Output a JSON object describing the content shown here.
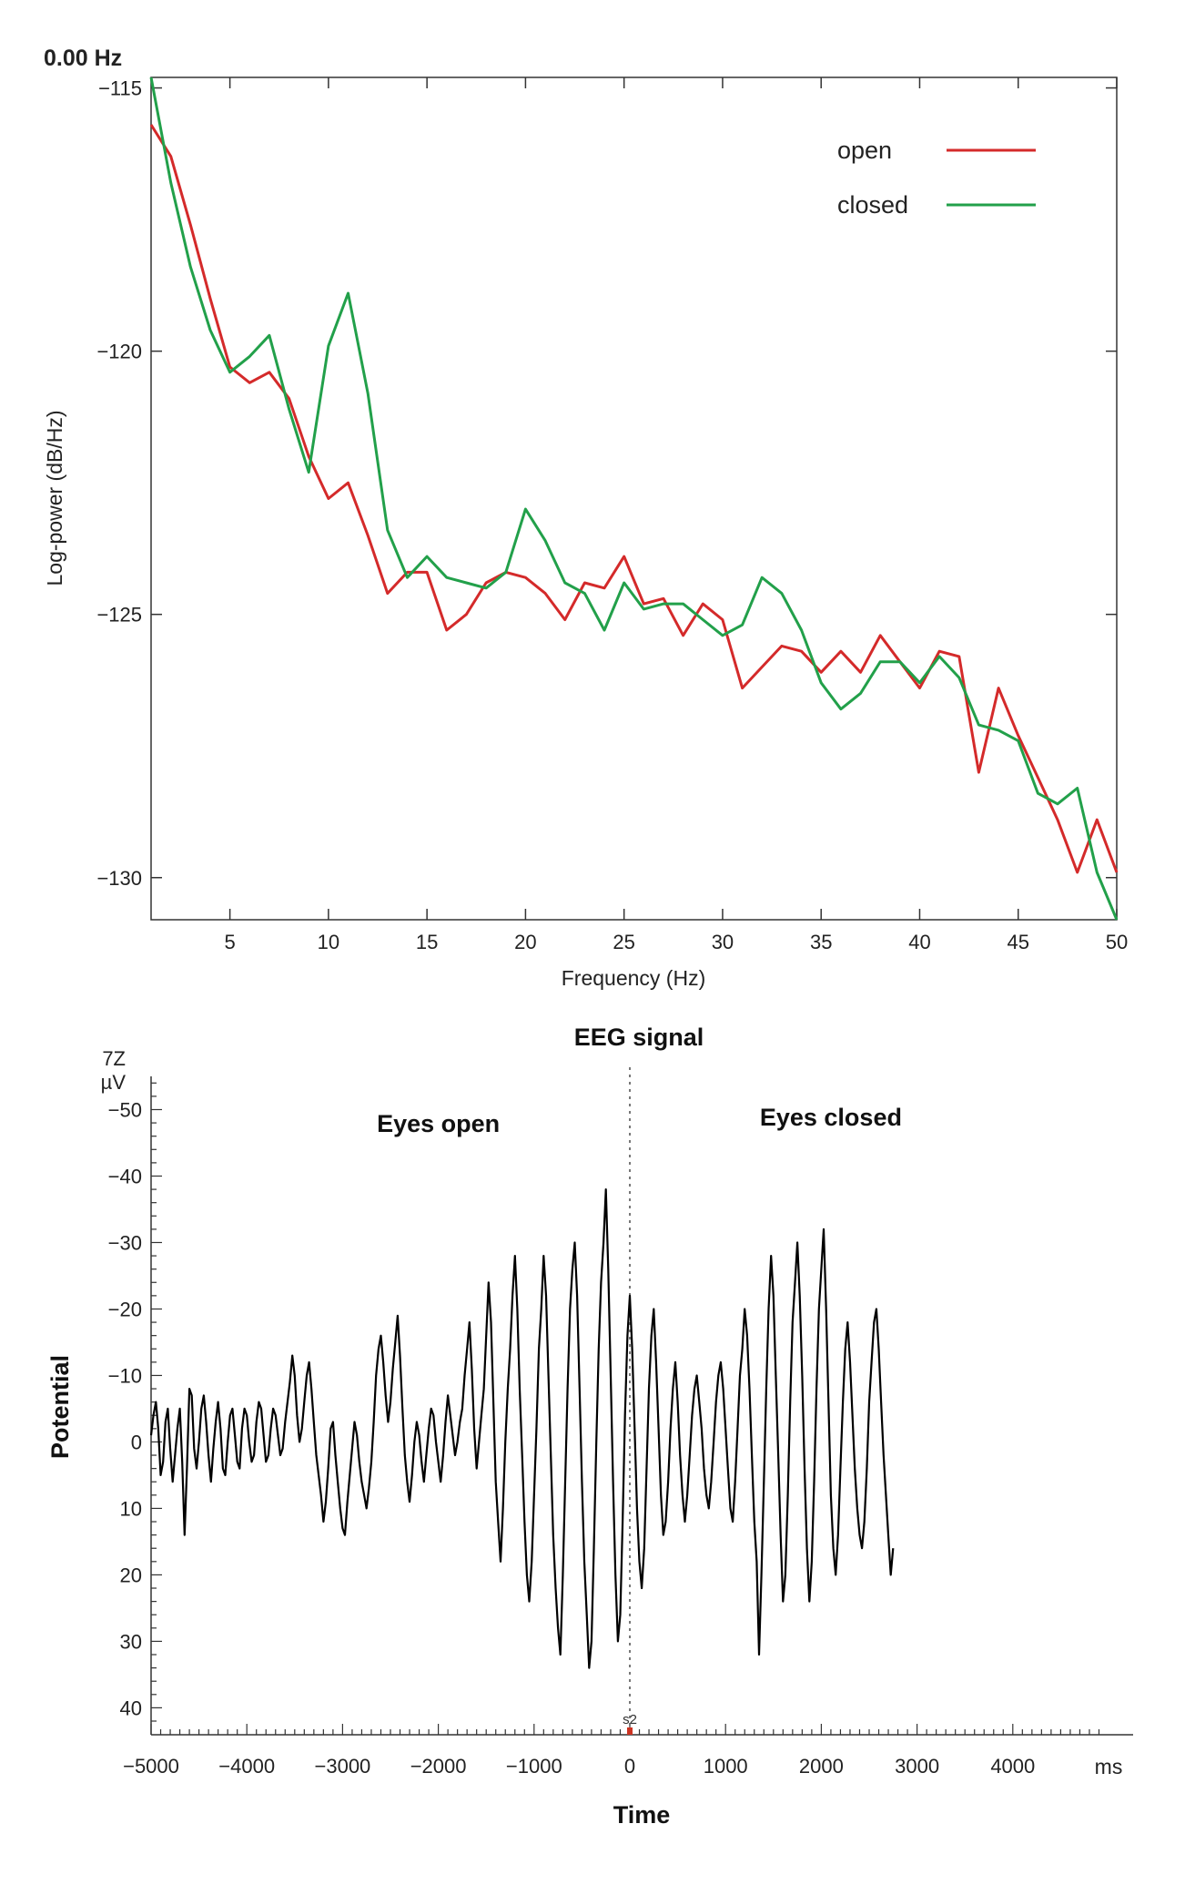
{
  "chart_data": [
    {
      "type": "line",
      "corner_label": "0.00 Hz",
      "title": "",
      "xlabel": "Frequency (Hz)",
      "ylabel": "Log-power (dB/Hz)",
      "xlim": [
        1,
        50
      ],
      "ylim": [
        -130.8,
        -114.8
      ],
      "xticks": [
        5,
        10,
        15,
        20,
        25,
        30,
        35,
        40,
        45,
        50
      ],
      "yticks": [
        -115,
        -120,
        -125,
        -130
      ],
      "legend_position": "top-right",
      "x": [
        1,
        2,
        3,
        4,
        5,
        6,
        7,
        8,
        9,
        10,
        11,
        12,
        13,
        14,
        15,
        16,
        17,
        18,
        19,
        20,
        21,
        22,
        23,
        24,
        25,
        26,
        27,
        28,
        29,
        30,
        31,
        32,
        33,
        34,
        35,
        36,
        37,
        38,
        39,
        40,
        41,
        42,
        43,
        44,
        45,
        46,
        47,
        48,
        49,
        50
      ],
      "series": [
        {
          "name": "open",
          "color": "#d42a2a",
          "values": [
            -115.7,
            -116.3,
            -117.6,
            -119.0,
            -120.3,
            -120.6,
            -120.4,
            -120.9,
            -122.0,
            -122.8,
            -122.5,
            -123.5,
            -124.6,
            -124.2,
            -124.2,
            -125.3,
            -125.0,
            -124.4,
            -124.2,
            -124.3,
            -124.6,
            -125.1,
            -124.4,
            -124.5,
            -123.9,
            -124.8,
            -124.7,
            -125.4,
            -124.8,
            -125.1,
            -126.4,
            -126.0,
            -125.6,
            -125.7,
            -126.1,
            -125.7,
            -126.1,
            -125.4,
            -125.9,
            -126.4,
            -125.7,
            -125.8,
            -128.0,
            -126.4,
            -127.3,
            -128.1,
            -128.9,
            -129.9,
            -128.9,
            -129.9
          ]
        },
        {
          "name": "closed",
          "color": "#22a04a",
          "values": [
            -114.8,
            -116.8,
            -118.4,
            -119.6,
            -120.4,
            -120.1,
            -119.7,
            -121.1,
            -122.3,
            -119.9,
            -118.9,
            -120.8,
            -123.4,
            -124.3,
            -123.9,
            -124.3,
            -124.4,
            -124.5,
            -124.2,
            -123.0,
            -123.6,
            -124.4,
            -124.6,
            -125.3,
            -124.4,
            -124.9,
            -124.8,
            -124.8,
            -125.1,
            -125.4,
            -125.2,
            -124.3,
            -124.6,
            -125.3,
            -126.3,
            -126.8,
            -126.5,
            -125.9,
            -125.9,
            -126.3,
            -125.8,
            -126.2,
            -127.1,
            -127.2,
            -127.4,
            -128.4,
            -128.6,
            -128.3,
            -129.9,
            -130.8
          ]
        }
      ]
    },
    {
      "type": "line",
      "title": "EEG signal",
      "channel_label": "7Z",
      "unit_label": "µV",
      "xlabel": "Time",
      "x_unit": "ms",
      "ylabel": "Potential",
      "xlim": [
        -5000,
        5000
      ],
      "ylim": [
        -55,
        42
      ],
      "y_inverted": true,
      "xticks": [
        -5000,
        -4000,
        -3000,
        -2000,
        -1000,
        0,
        1000,
        2000,
        3000,
        4000
      ],
      "yticks": [
        -50,
        -40,
        -30,
        -20,
        -10,
        0,
        10,
        20,
        30,
        40
      ],
      "annotations": [
        {
          "text": "Eyes open",
          "x": -2000,
          "y": -48
        },
        {
          "text": "Eyes closed",
          "x": 2100,
          "y": -49
        }
      ],
      "event_marker": {
        "label": "s2",
        "x": 0
      },
      "signal": {
        "name": "EEG potential",
        "color": "#000000",
        "x_start": -5000,
        "step_ms": 25,
        "values": [
          -1,
          -4,
          -6,
          -2,
          5,
          3,
          -3,
          -5,
          1,
          6,
          2,
          -2,
          -5,
          3,
          14,
          4,
          -8,
          -7,
          1,
          4,
          0,
          -5,
          -7,
          -3,
          2,
          6,
          1,
          -3,
          -6,
          -2,
          4,
          5,
          0,
          -4,
          -5,
          -1,
          3,
          4,
          -2,
          -5,
          -4,
          0,
          3,
          2,
          -3,
          -6,
          -5,
          -1,
          3,
          2,
          -2,
          -5,
          -4,
          -1,
          2,
          1,
          -3,
          -6,
          -9,
          -13,
          -10,
          -4,
          0,
          -2,
          -6,
          -10,
          -12,
          -8,
          -3,
          2,
          5,
          8,
          12,
          9,
          4,
          -2,
          -3,
          2,
          6,
          10,
          13,
          14,
          9,
          5,
          1,
          -3,
          -1,
          3,
          6,
          8,
          10,
          7,
          3,
          -3,
          -10,
          -14,
          -16,
          -12,
          -7,
          -3,
          -6,
          -11,
          -15,
          -19,
          -13,
          -5,
          2,
          6,
          9,
          5,
          0,
          -3,
          -1,
          3,
          6,
          2,
          -2,
          -5,
          -4,
          0,
          3,
          6,
          2,
          -3,
          -7,
          -4,
          -1,
          2,
          0,
          -3,
          -5,
          -10,
          -14,
          -18,
          -11,
          -2,
          4,
          0,
          -4,
          -8,
          -16,
          -24,
          -18,
          -6,
          6,
          12,
          18,
          10,
          0,
          -8,
          -14,
          -22,
          -28,
          -20,
          -8,
          2,
          12,
          20,
          24,
          18,
          8,
          -2,
          -14,
          -20,
          -28,
          -22,
          -10,
          2,
          14,
          22,
          28,
          32,
          20,
          6,
          -8,
          -20,
          -26,
          -30,
          -22,
          -8,
          6,
          18,
          26,
          34,
          30,
          16,
          0,
          -14,
          -24,
          -30,
          -38,
          -26,
          -10,
          6,
          20,
          30,
          26,
          12,
          -4,
          -16,
          -22,
          -14,
          -2,
          10,
          18,
          22,
          16,
          4,
          -8,
          -16,
          -20,
          -12,
          -2,
          8,
          14,
          12,
          6,
          -2,
          -8,
          -12,
          -6,
          2,
          8,
          12,
          8,
          2,
          -4,
          -8,
          -10,
          -6,
          -2,
          4,
          8,
          10,
          6,
          0,
          -6,
          -10,
          -12,
          -8,
          -2,
          4,
          10,
          12,
          6,
          -2,
          -10,
          -14,
          -20,
          -16,
          -8,
          2,
          12,
          18,
          32,
          20,
          6,
          -8,
          -20,
          -28,
          -22,
          -10,
          2,
          14,
          24,
          20,
          8,
          -6,
          -18,
          -24,
          -30,
          -22,
          -10,
          4,
          16,
          24,
          18,
          6,
          -8,
          -20,
          -26,
          -32,
          -20,
          -6,
          8,
          16,
          20,
          14,
          4,
          -6,
          -14,
          -18,
          -12,
          -4,
          4,
          10,
          14,
          16,
          12,
          4,
          -6,
          -12,
          -18,
          -20,
          -14,
          -6,
          2,
          8,
          14,
          20,
          16
        ]
      }
    }
  ]
}
